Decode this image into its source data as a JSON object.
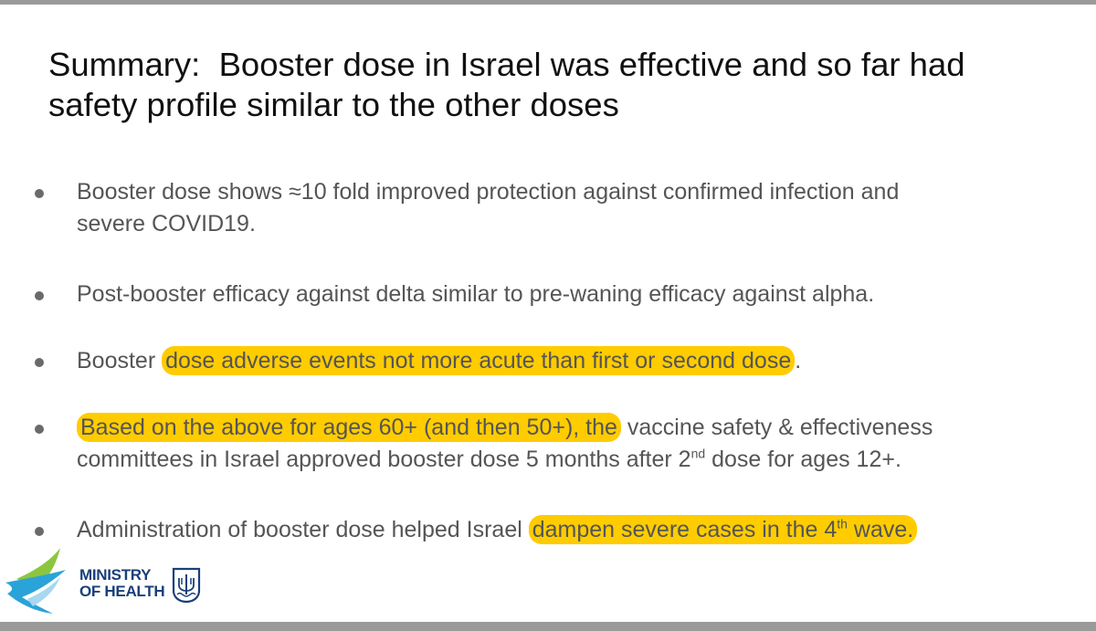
{
  "slide": {
    "title_line1": "Summary:  Booster dose in Israel was effective and so far had",
    "title_line2": "safety profile similar to the other doses"
  },
  "bullets": [
    {
      "line1": "Booster dose shows ≈10 fold improved protection against confirmed infection and",
      "line2": "severe COVID19."
    },
    {
      "text": "Post-booster efficacy against delta similar to pre-waning  efficacy against alpha."
    },
    {
      "pre": "Booster ",
      "highlight": "dose adverse events not more acute than first or second dose",
      "post": "."
    },
    {
      "highlight": "Based on the above for ages 60+ (and then 50+), the",
      "post": " vaccine safety & effectiveness",
      "line2_pre": "committees in Israel approved booster dose 5 months after 2",
      "line2_sup": "nd",
      "line2_post": " dose for ages 12+."
    },
    {
      "pre": "Administration of booster dose helped  Israel ",
      "highlight_pre": "dampen severe cases in the 4",
      "highlight_sup": "th",
      "highlight_post": " wave."
    }
  ],
  "logo": {
    "line1": "MINISTRY",
    "line2": "OF HEALTH"
  },
  "colors": {
    "highlight": "#ffcc00",
    "body_text": "#555555",
    "title_text": "#111111",
    "logo_blue": "#1a3f7a",
    "logo_green": "#8cc63f",
    "logo_cyan": "#2aa3d8"
  }
}
